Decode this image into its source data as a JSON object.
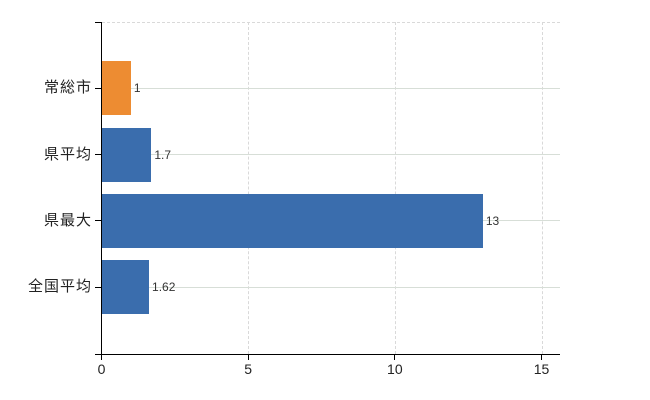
{
  "chart_data": {
    "type": "bar",
    "orientation": "horizontal",
    "title": "",
    "categories": [
      "常総市",
      "県平均",
      "県最大",
      "全国平均"
    ],
    "values": [
      1,
      1.7,
      13,
      1.62
    ],
    "value_labels": [
      "1",
      "1.7",
      "13",
      "1.62"
    ],
    "bar_colors": [
      "#ED8C32",
      "#3A6DAD",
      "#3A6DAD",
      "#3A6DAD"
    ],
    "x_ticks": [
      "0",
      "5",
      "10",
      "15"
    ],
    "x_tick_values": [
      0,
      5,
      10,
      15
    ],
    "xlim": [
      0,
      15.63
    ],
    "grid": true,
    "legend": false
  },
  "colors": {
    "bar_orange": "#ED8C32",
    "bar_blue": "#3A6DAD",
    "grid_horizontal": "#D7DED7",
    "grid_vertical": "#D9D9D9",
    "axis": "#000000",
    "category_text": "#222222",
    "value_text": "#333333",
    "background": "#FFFFFF"
  }
}
